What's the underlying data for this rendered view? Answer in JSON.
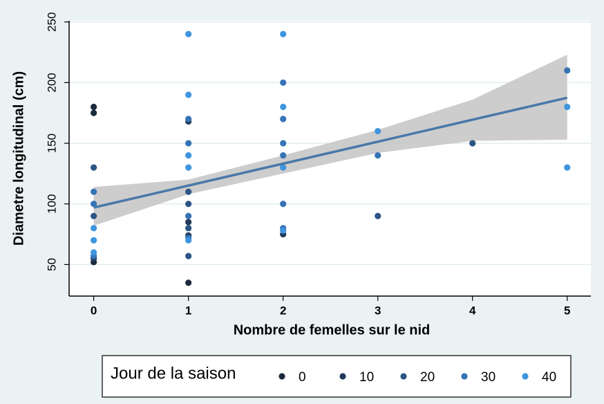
{
  "chart_data": {
    "type": "scatter",
    "x_label": "Nombre de femelles sur le nid",
    "y_label": "Diametre longitudinal (cm)",
    "xlim": [
      -0.26,
      5.25
    ],
    "xticks": [
      0,
      1,
      2,
      3,
      4,
      5
    ],
    "ylim": [
      24,
      251
    ],
    "yticks": [
      50,
      100,
      150,
      200,
      250
    ],
    "grid": true,
    "legend_title": "Jour de la saison",
    "series": [
      {
        "name": "0",
        "color": "#1b2a3d",
        "x": [
          0,
          0,
          0,
          1
        ],
        "values": [
          180,
          175,
          52,
          35
        ]
      },
      {
        "name": "10",
        "color": "#22395a",
        "x": [
          1,
          1,
          1,
          2,
          0
        ],
        "values": [
          168,
          85,
          74,
          75,
          55
        ]
      },
      {
        "name": "20",
        "color": "#2b5584",
        "x": [
          0,
          0,
          1,
          1,
          1,
          1,
          3,
          4
        ],
        "values": [
          130,
          90,
          110,
          100,
          80,
          57,
          90,
          150
        ]
      },
      {
        "name": "30",
        "color": "#3673b6",
        "x": [
          0,
          0,
          0,
          1,
          1,
          1,
          1,
          2,
          2,
          2,
          2,
          2,
          2,
          3,
          5
        ],
        "values": [
          110,
          100,
          57,
          170,
          150,
          90,
          72,
          200,
          170,
          150,
          140,
          100,
          80,
          140,
          210
        ]
      },
      {
        "name": "40",
        "color": "#3f95de",
        "x": [
          0,
          0,
          0,
          1,
          1,
          1,
          1,
          1,
          2,
          2,
          2,
          2,
          3,
          5,
          5
        ],
        "values": [
          80,
          70,
          60,
          240,
          190,
          140,
          130,
          70,
          240,
          180,
          130,
          78,
          160,
          180,
          130
        ]
      }
    ],
    "fit": {
      "color": "#4a78a8",
      "x": [
        0,
        5
      ],
      "values": [
        97,
        187.5
      ]
    },
    "ci": {
      "color": "#c4c4c4",
      "x": [
        0,
        1,
        2,
        3,
        4,
        5
      ],
      "lower": [
        82,
        108,
        125,
        142,
        152,
        153
      ],
      "upper": [
        114,
        120,
        140,
        161,
        186,
        223
      ]
    }
  }
}
